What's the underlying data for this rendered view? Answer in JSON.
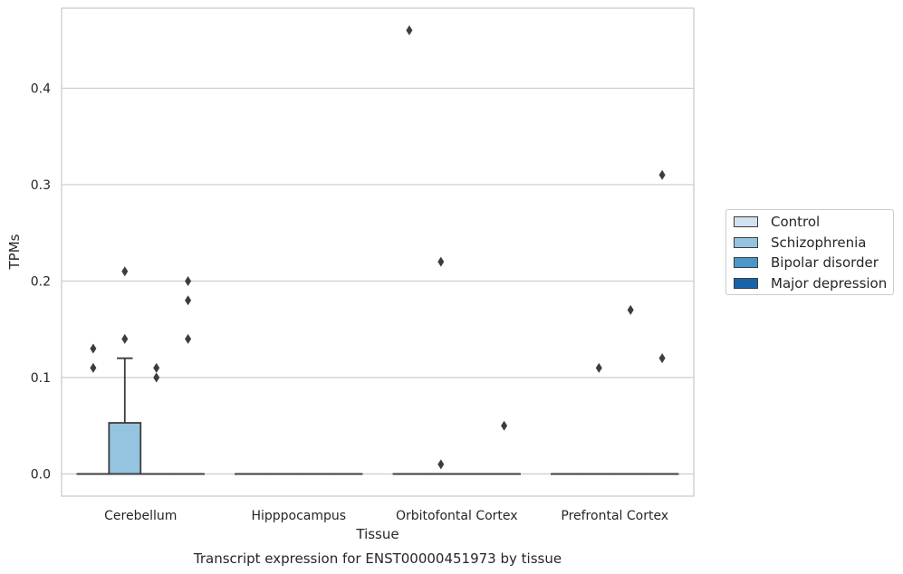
{
  "chart_data": {
    "type": "box",
    "title": "Transcript expression for ENST00000451973 by tissue",
    "xlabel": "Tissue",
    "ylabel": "TPMs",
    "ylim": [
      -0.023,
      0.483
    ],
    "yticks": [
      "0.0",
      "0.1",
      "0.2",
      "0.3",
      "0.4"
    ],
    "categories": [
      "Cerebellum",
      "Hipppocampus",
      "Orbitofontal Cortex",
      "Prefrontal Cortex"
    ],
    "grid": true,
    "legend_position": "right",
    "series": [
      {
        "name": "Control",
        "color": "#d0e1f2",
        "boxes": [
          {
            "q1": 0,
            "median": 0,
            "q3": 0,
            "whisker_low": 0,
            "whisker_high": 0,
            "outliers": [
              0.11,
              0.13
            ]
          },
          {
            "q1": 0,
            "median": 0,
            "q3": 0,
            "whisker_low": 0,
            "whisker_high": 0,
            "outliers": []
          },
          {
            "q1": 0,
            "median": 0,
            "q3": 0,
            "whisker_low": 0,
            "whisker_high": 0,
            "outliers": [
              0.46
            ]
          },
          {
            "q1": 0,
            "median": 0,
            "q3": 0,
            "whisker_low": 0,
            "whisker_high": 0,
            "outliers": []
          }
        ]
      },
      {
        "name": "Schizophrenia",
        "color": "#94c4df",
        "boxes": [
          {
            "q1": 0,
            "median": 0,
            "q3": 0.053,
            "whisker_low": 0,
            "whisker_high": 0.12,
            "outliers": [
              0.14,
              0.21
            ]
          },
          {
            "q1": 0,
            "median": 0,
            "q3": 0,
            "whisker_low": 0,
            "whisker_high": 0,
            "outliers": []
          },
          {
            "q1": 0,
            "median": 0,
            "q3": 0,
            "whisker_low": 0,
            "whisker_high": 0,
            "outliers": [
              0.01,
              0.22
            ]
          },
          {
            "q1": 0,
            "median": 0,
            "q3": 0,
            "whisker_low": 0,
            "whisker_high": 0,
            "outliers": [
              0.11
            ]
          }
        ]
      },
      {
        "name": "Bipolar disorder",
        "color": "#4a98c9",
        "boxes": [
          {
            "q1": 0,
            "median": 0,
            "q3": 0,
            "whisker_low": 0,
            "whisker_high": 0,
            "outliers": [
              0.1,
              0.11
            ]
          },
          {
            "q1": 0,
            "median": 0,
            "q3": 0,
            "whisker_low": 0,
            "whisker_high": 0,
            "outliers": []
          },
          {
            "q1": 0,
            "median": 0,
            "q3": 0,
            "whisker_low": 0,
            "whisker_high": 0,
            "outliers": []
          },
          {
            "q1": 0,
            "median": 0,
            "q3": 0,
            "whisker_low": 0,
            "whisker_high": 0,
            "outliers": [
              0.17
            ]
          }
        ]
      },
      {
        "name": "Major depression",
        "color": "#1764ab",
        "boxes": [
          {
            "q1": 0,
            "median": 0,
            "q3": 0,
            "whisker_low": 0,
            "whisker_high": 0,
            "outliers": [
              0.14,
              0.18,
              0.2
            ]
          },
          {
            "q1": 0,
            "median": 0,
            "q3": 0,
            "whisker_low": 0,
            "whisker_high": 0,
            "outliers": []
          },
          {
            "q1": 0,
            "median": 0,
            "q3": 0,
            "whisker_low": 0,
            "whisker_high": 0,
            "outliers": [
              0.05
            ]
          },
          {
            "q1": 0,
            "median": 0,
            "q3": 0,
            "whisker_low": 0,
            "whisker_high": 0,
            "outliers": [
              0.12,
              0.31
            ]
          }
        ]
      }
    ]
  }
}
